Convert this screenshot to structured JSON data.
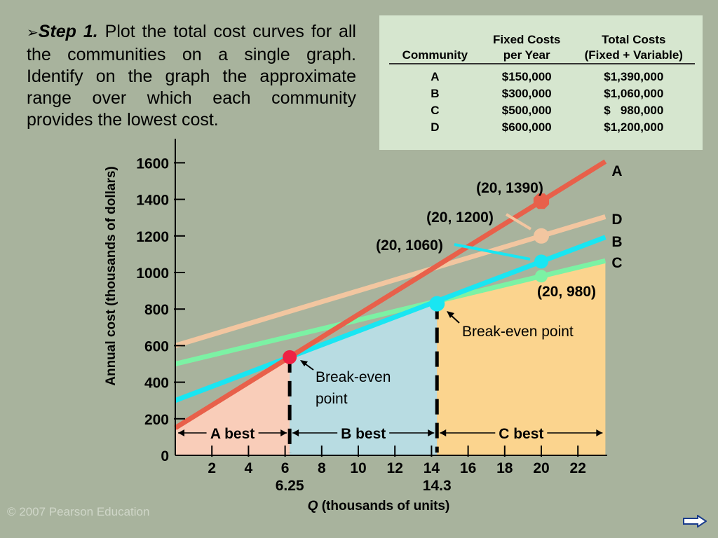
{
  "step": {
    "label": "Step 1.",
    "text": "Plot the total cost curves for all the communities on a single graph. Identify on the graph the approximate range over which each community provides the lowest cost."
  },
  "table": {
    "headers": [
      "Community",
      "Fixed Costs per Year",
      "Total Costs (Fixed + Variable)"
    ],
    "header_lines": [
      [
        "Community"
      ],
      [
        "Fixed Costs",
        "per Year"
      ],
      [
        "Total Costs",
        "(Fixed + Variable)"
      ]
    ],
    "rows": [
      [
        "A",
        "$150,000",
        "$1,390,000"
      ],
      [
        "B",
        "$300,000",
        "$1,060,000"
      ],
      [
        "C",
        "$500,000",
        "$   980,000"
      ],
      [
        "D",
        "$600,000",
        "$1,200,000"
      ]
    ]
  },
  "chart_data": {
    "type": "line",
    "xlabel_italic": "Q",
    "xlabel_rest": " (thousands of units)",
    "ylabel": "Annual cost (thousands of dollars)",
    "xlim": [
      0,
      24
    ],
    "ylim": [
      0,
      1700
    ],
    "x_ticks": [
      2,
      4,
      6,
      8,
      10,
      12,
      14,
      16,
      18,
      20,
      22
    ],
    "y_ticks": [
      0,
      200,
      400,
      600,
      800,
      1000,
      1200,
      1400,
      1600
    ],
    "extra_x_labels": [
      {
        "x": 6.25,
        "label": "6.25"
      },
      {
        "x": 14.3,
        "label": "14.3"
      }
    ],
    "series": [
      {
        "name": "A",
        "fixed": 150,
        "at20": 1390,
        "color": "#e8604a"
      },
      {
        "name": "D",
        "fixed": 600,
        "at20": 1200,
        "color": "#f2c6a0"
      },
      {
        "name": "B",
        "fixed": 300,
        "at20": 1060,
        "color": "#19e6f2"
      },
      {
        "name": "C",
        "fixed": 500,
        "at20": 980,
        "color": "#7cf2a4"
      }
    ],
    "point_labels": [
      "(20, 1390)",
      "(20, 1200)",
      "(20, 1060)",
      "(20, 980)"
    ],
    "break_even": [
      {
        "x": 6.25,
        "y": 537,
        "label": "Break-even point"
      },
      {
        "x": 14.3,
        "y": 829,
        "label": "Break-even point"
      }
    ],
    "regions": [
      {
        "label": "A best",
        "from": 0,
        "to": 6.25,
        "color": "#f9cdb9"
      },
      {
        "label": "B best",
        "from": 6.25,
        "to": 14.3,
        "color": "#b8dce2"
      },
      {
        "label": "C best",
        "from": 14.3,
        "to": 23.5,
        "color": "#fbd48e"
      }
    ]
  },
  "copyright": "© 2007 Pearson Education"
}
